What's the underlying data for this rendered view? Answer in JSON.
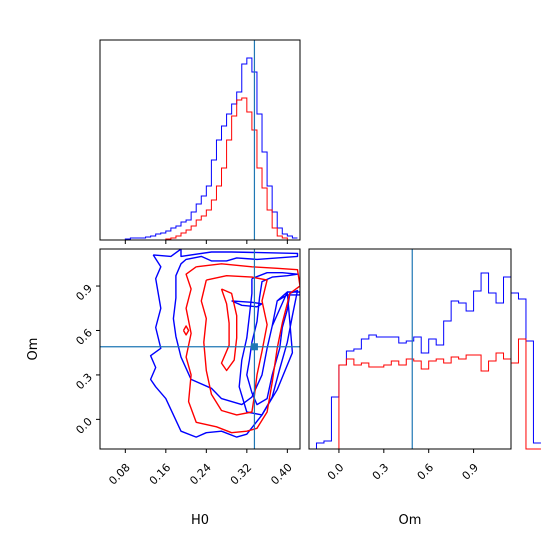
{
  "chart_data": [
    {
      "type": "histogram",
      "panel": "H0 marginal",
      "x_range": [
        0.03,
        0.425
      ],
      "bins": {
        "start": 0.03,
        "width": 0.01,
        "blue": [
          0,
          0,
          0,
          0,
          0,
          0.5,
          1,
          1,
          1,
          1.5,
          2,
          3,
          3.5,
          4.5,
          6,
          7,
          9,
          10,
          14,
          18,
          22,
          27,
          40,
          50,
          57,
          63,
          68,
          74,
          88,
          91,
          84,
          63,
          44,
          27,
          14,
          6,
          3,
          2,
          1
        ],
        "red": [
          0,
          0,
          0,
          0,
          0,
          0,
          0,
          0,
          0,
          0,
          0,
          0,
          0,
          0.5,
          1,
          2,
          3.5,
          5,
          7,
          10,
          12,
          15,
          20,
          27,
          36,
          50,
          62,
          70,
          71,
          64,
          55,
          36,
          26,
          15,
          6,
          2,
          1,
          0,
          0
        ]
      },
      "truth_line_x": 0.335,
      "colors": {
        "blue": "#0000ff",
        "red": "#ff0000",
        "truth": "#1f77b4"
      }
    },
    {
      "type": "contour",
      "panel": "H0 vs Om",
      "x_range": [
        0.03,
        0.425
      ],
      "y_range": [
        -0.2,
        1.15
      ],
      "xticks": [
        "0.08",
        "0.16",
        "0.24",
        "0.32",
        "0.40"
      ],
      "xtick_values": [
        0.08,
        0.16,
        0.24,
        0.32,
        0.4
      ],
      "yticks": [
        "0.0",
        "0.3",
        "0.6",
        "0.9"
      ],
      "ytick_values": [
        0.0,
        0.3,
        0.6,
        0.9
      ],
      "xlabel": "H0",
      "ylabel": "Om",
      "truth_point": [
        0.335,
        0.49
      ],
      "contours": [
        {
          "color": "blue",
          "level": "outer",
          "points": [
            [
              0.135,
              1.11
            ],
            [
              0.17,
              1.1
            ],
            [
              0.19,
              1.15
            ],
            [
              0.19,
              1.1
            ],
            [
              0.25,
              1.13
            ],
            [
              0.29,
              1.13
            ],
            [
              0.42,
              1.12
            ],
            [
              0.42,
              1.1
            ],
            [
              0.34,
              1.08
            ],
            [
              0.3,
              1.09
            ],
            [
              0.28,
              1.07
            ],
            [
              0.25,
              1.07
            ],
            [
              0.23,
              1.1
            ],
            [
              0.2,
              1.08
            ],
            [
              0.19,
              1.05
            ],
            [
              0.18,
              0.97
            ],
            [
              0.18,
              0.82
            ],
            [
              0.175,
              0.68
            ],
            [
              0.18,
              0.56
            ],
            [
              0.19,
              0.42
            ],
            [
              0.21,
              0.27
            ],
            [
              0.25,
              0.21
            ],
            [
              0.27,
              0.14
            ],
            [
              0.31,
              0.1
            ],
            [
              0.33,
              0.15
            ],
            [
              0.35,
              0.3
            ],
            [
              0.36,
              0.48
            ],
            [
              0.37,
              0.63
            ],
            [
              0.38,
              0.8
            ],
            [
              0.4,
              0.84
            ],
            [
              0.425,
              0.84
            ],
            [
              0.425,
              0.86
            ],
            [
              0.4,
              0.86
            ],
            [
              0.38,
              0.8
            ],
            [
              0.37,
              0.63
            ],
            [
              0.4,
              0.86
            ],
            [
              0.41,
              0.45
            ],
            [
              0.38,
              0.2
            ],
            [
              0.35,
              0.03
            ],
            [
              0.32,
              -0.1
            ],
            [
              0.3,
              -0.12
            ],
            [
              0.27,
              -0.08
            ],
            [
              0.24,
              -0.09
            ],
            [
              0.22,
              -0.12
            ],
            [
              0.19,
              -0.08
            ],
            [
              0.16,
              0.14
            ],
            [
              0.14,
              0.22
            ],
            [
              0.13,
              0.27
            ],
            [
              0.14,
              0.35
            ],
            [
              0.13,
              0.43
            ],
            [
              0.15,
              0.48
            ],
            [
              0.14,
              0.62
            ],
            [
              0.15,
              0.75
            ],
            [
              0.14,
              0.95
            ],
            [
              0.15,
              1.03
            ],
            [
              0.135,
              1.11
            ]
          ]
        },
        {
          "color": "blue",
          "level": "inner",
          "points": [
            [
              0.33,
              0.95
            ],
            [
              0.36,
              0.99
            ],
            [
              0.39,
              0.99
            ],
            [
              0.42,
              0.98
            ],
            [
              0.4,
              0.97
            ],
            [
              0.37,
              0.96
            ],
            [
              0.35,
              0.93
            ],
            [
              0.345,
              0.82
            ],
            [
              0.34,
              0.66
            ],
            [
              0.33,
              0.52
            ],
            [
              0.325,
              0.4
            ],
            [
              0.32,
              0.3
            ],
            [
              0.33,
              0.18
            ],
            [
              0.34,
              0.1
            ],
            [
              0.36,
              0.14
            ],
            [
              0.37,
              0.3
            ],
            [
              0.385,
              0.48
            ],
            [
              0.39,
              0.62
            ],
            [
              0.4,
              0.74
            ],
            [
              0.405,
              0.85
            ],
            [
              0.42,
              0.87
            ],
            [
              0.41,
              0.7
            ],
            [
              0.4,
              0.52
            ],
            [
              0.385,
              0.34
            ],
            [
              0.37,
              0.15
            ],
            [
              0.35,
              0.03
            ],
            [
              0.32,
              0.05
            ],
            [
              0.305,
              0.22
            ],
            [
              0.31,
              0.4
            ],
            [
              0.32,
              0.55
            ],
            [
              0.325,
              0.7
            ],
            [
              0.33,
              0.85
            ],
            [
              0.33,
              0.95
            ]
          ]
        },
        {
          "color": "blue",
          "level": "inner-2",
          "points": [
            [
              0.29,
              0.8
            ],
            [
              0.33,
              0.79
            ],
            [
              0.35,
              0.78
            ],
            [
              0.34,
              0.76
            ],
            [
              0.31,
              0.77
            ],
            [
              0.29,
              0.8
            ]
          ]
        },
        {
          "color": "red",
          "level": "outer",
          "points": [
            [
              0.22,
              1.03
            ],
            [
              0.27,
              1.05
            ],
            [
              0.33,
              1.03
            ],
            [
              0.38,
              1.02
            ],
            [
              0.42,
              1.01
            ],
            [
              0.425,
              0.9
            ],
            [
              0.405,
              0.85
            ],
            [
              0.39,
              0.65
            ],
            [
              0.38,
              0.48
            ],
            [
              0.37,
              0.25
            ],
            [
              0.36,
              0.05
            ],
            [
              0.34,
              -0.06
            ],
            [
              0.32,
              -0.08
            ],
            [
              0.29,
              -0.09
            ],
            [
              0.26,
              -0.05
            ],
            [
              0.22,
              -0.02
            ],
            [
              0.205,
              0.12
            ],
            [
              0.21,
              0.3
            ],
            [
              0.2,
              0.42
            ],
            [
              0.21,
              0.58
            ],
            [
              0.2,
              0.75
            ],
            [
              0.21,
              0.88
            ],
            [
              0.2,
              0.98
            ],
            [
              0.22,
              1.03
            ]
          ]
        },
        {
          "color": "red",
          "level": "inner",
          "points": [
            [
              0.24,
              0.94
            ],
            [
              0.28,
              0.97
            ],
            [
              0.33,
              0.96
            ],
            [
              0.36,
              0.94
            ],
            [
              0.35,
              0.8
            ],
            [
              0.36,
              0.64
            ],
            [
              0.35,
              0.46
            ],
            [
              0.34,
              0.3
            ],
            [
              0.335,
              0.16
            ],
            [
              0.33,
              0.05
            ],
            [
              0.3,
              0.03
            ],
            [
              0.27,
              0.06
            ],
            [
              0.25,
              0.17
            ],
            [
              0.24,
              0.33
            ],
            [
              0.235,
              0.52
            ],
            [
              0.24,
              0.68
            ],
            [
              0.23,
              0.8
            ],
            [
              0.24,
              0.94
            ]
          ]
        },
        {
          "color": "red",
          "level": "inner-2",
          "points": [
            [
              0.27,
              0.88
            ],
            [
              0.29,
              0.85
            ],
            [
              0.3,
              0.7
            ],
            [
              0.3,
              0.55
            ],
            [
              0.295,
              0.4
            ],
            [
              0.28,
              0.33
            ],
            [
              0.27,
              0.38
            ],
            [
              0.285,
              0.5
            ],
            [
              0.285,
              0.65
            ],
            [
              0.28,
              0.78
            ],
            [
              0.27,
              0.88
            ]
          ]
        },
        {
          "color": "red",
          "level": "small",
          "points": [
            [
              0.195,
              0.6
            ],
            [
              0.2,
              0.63
            ],
            [
              0.205,
              0.6
            ],
            [
              0.2,
              0.57
            ],
            [
              0.195,
              0.6
            ]
          ]
        }
      ]
    },
    {
      "type": "histogram",
      "panel": "Om marginal",
      "x_range": [
        -0.2,
        1.15
      ],
      "xticks": [
        "0.0",
        "0.3",
        "0.6",
        "0.9"
      ],
      "xtick_values": [
        0.0,
        0.3,
        0.6,
        0.9
      ],
      "xlabel": "Om",
      "bins": {
        "start": -0.2,
        "width": 0.05,
        "blue": [
          0,
          3,
          4,
          26,
          42,
          49,
          50,
          55,
          57,
          56,
          56,
          56,
          53,
          54,
          56,
          48,
          55,
          52,
          64,
          74,
          73,
          69,
          79,
          88,
          78,
          73,
          86,
          78,
          75,
          54,
          3
        ],
        "red": [
          0,
          0,
          0,
          0,
          42,
          45,
          42,
          43,
          41,
          41,
          42,
          44,
          42,
          45,
          44,
          40,
          44,
          45,
          43,
          46,
          45,
          47,
          47,
          39,
          44,
          48,
          45,
          43,
          55,
          0,
          0
        ]
      },
      "truth_line_x": 0.49
    }
  ]
}
